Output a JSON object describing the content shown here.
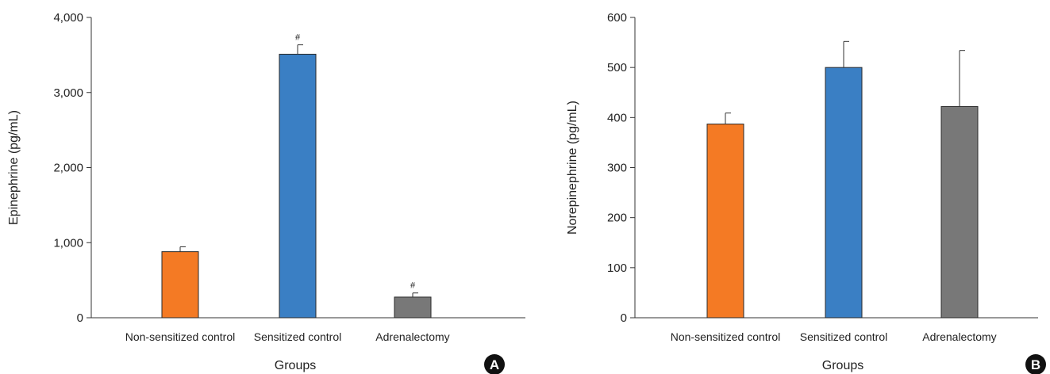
{
  "chart_data": [
    {
      "type": "bar",
      "panel": "A",
      "categories": [
        "Non-sensitized control",
        "Sensitized control",
        "Adrenalectomy"
      ],
      "values": [
        880,
        3510,
        275
      ],
      "errors": [
        65,
        125,
        55
      ],
      "significance": [
        "",
        "#",
        "#"
      ],
      "colors": [
        "#f47a24",
        "#3a7fc4",
        "#787878"
      ],
      "xlabel": "Groups",
      "ylabel": "Epinephrine (pg/mL)",
      "ylim": [
        0,
        4000
      ],
      "yticks": [
        0,
        1000,
        2000,
        3000,
        4000
      ],
      "ytick_labels": [
        "0",
        "1,000",
        "2,000",
        "3,000",
        "4,000"
      ],
      "grid": false
    },
    {
      "type": "bar",
      "panel": "B",
      "categories": [
        "Non-sensitized control",
        "Sensitized control",
        "Adrenalectomy"
      ],
      "values": [
        387,
        500,
        422
      ],
      "errors": [
        22,
        52,
        112
      ],
      "significance": [
        "",
        "",
        ""
      ],
      "colors": [
        "#f47a24",
        "#3a7fc4",
        "#787878"
      ],
      "xlabel": "Groups",
      "ylabel": "Norepinephrine (pg/mL)",
      "ylim": [
        0,
        600
      ],
      "yticks": [
        0,
        100,
        200,
        300,
        400,
        500,
        600
      ],
      "ytick_labels": [
        "0",
        "100",
        "200",
        "300",
        "400",
        "500",
        "600"
      ],
      "grid": false
    }
  ]
}
